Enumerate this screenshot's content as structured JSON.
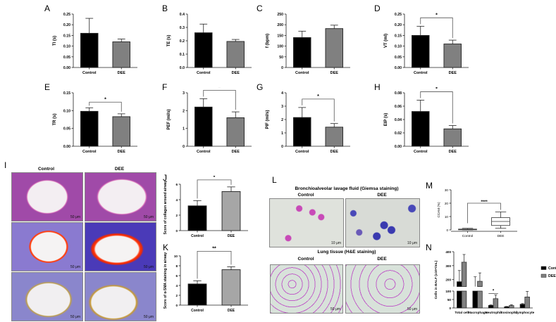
{
  "figure": {
    "panels": [
      "A",
      "B",
      "C",
      "D",
      "E",
      "F",
      "G",
      "H",
      "I",
      "J",
      "K",
      "L",
      "M",
      "N"
    ],
    "I": {
      "columns": [
        "Control",
        "DEE"
      ],
      "scale_bar": "50 μm"
    },
    "L": {
      "title_top": "Bronchioalveolar lavage fluid (Giemsa staining)",
      "title_bottom": "Lung tissue (H&E staining)",
      "columns": [
        "Control",
        "DEE"
      ],
      "scale_top": "10 μm",
      "scale_bottom": "50 μm"
    }
  },
  "colors": {
    "control": "#000000",
    "dee": "#808080",
    "dee_light": "#a6a6a6"
  },
  "chart_data": [
    {
      "panel": "A",
      "type": "bar",
      "categories": [
        "Control",
        "DEE"
      ],
      "values": [
        0.16,
        0.12
      ],
      "errors": [
        0.07,
        0.013
      ],
      "ylabel": "TI (s)",
      "ylim": [
        0,
        0.25
      ],
      "yticks": [
        "0.00",
        "0.05",
        "0.10",
        "0.15",
        "0.20",
        "0.25"
      ],
      "significance": ""
    },
    {
      "panel": "B",
      "type": "bar",
      "categories": [
        "Control",
        "DEE"
      ],
      "values": [
        0.26,
        0.195
      ],
      "errors": [
        0.065,
        0.015
      ],
      "ylabel": "TE (s)",
      "ylim": [
        0,
        0.4
      ],
      "yticks": [
        "0.0",
        "0.1",
        "0.2",
        "0.3",
        "0.4"
      ],
      "significance": ""
    },
    {
      "panel": "C",
      "type": "bar",
      "categories": [
        "Control",
        "DEE"
      ],
      "values": [
        140,
        182
      ],
      "errors": [
        30,
        16
      ],
      "ylabel": "f (bpm)",
      "ylim": [
        0,
        250
      ],
      "yticks": [
        "0",
        "50",
        "100",
        "150",
        "200",
        "250"
      ],
      "significance": ""
    },
    {
      "panel": "D",
      "type": "bar",
      "categories": [
        "Control",
        "DEE"
      ],
      "values": [
        0.15,
        0.11
      ],
      "errors": [
        0.043,
        0.018
      ],
      "ylabel": "VT (ml)",
      "ylim": [
        0,
        0.25
      ],
      "yticks": [
        "0.00",
        "0.05",
        "0.10",
        "0.15",
        "0.20",
        "0.25"
      ],
      "significance": "*"
    },
    {
      "panel": "E",
      "type": "bar",
      "categories": [
        "Control",
        "DEE"
      ],
      "values": [
        0.098,
        0.083
      ],
      "errors": [
        0.01,
        0.008
      ],
      "ylabel": "TR (s)",
      "ylim": [
        0,
        0.15
      ],
      "yticks": [
        "0.00",
        "0.05",
        "0.10",
        "0.15"
      ],
      "significance": "*"
    },
    {
      "panel": "F",
      "type": "bar",
      "categories": [
        "Control",
        "DEE"
      ],
      "values": [
        2.2,
        1.6
      ],
      "errors": [
        0.47,
        0.33
      ],
      "ylabel": "PEF (ml/s)",
      "ylim": [
        0,
        3
      ],
      "yticks": [
        "0",
        "1",
        "2",
        "3"
      ],
      "significance": "*"
    },
    {
      "panel": "G",
      "type": "bar",
      "categories": [
        "Control",
        "DEE"
      ],
      "values": [
        2.15,
        1.43
      ],
      "errors": [
        0.75,
        0.27
      ],
      "ylabel": "PIF (ml/s)",
      "ylim": [
        0,
        4
      ],
      "yticks": [
        "0",
        "1",
        "2",
        "3",
        "4"
      ],
      "significance": "*"
    },
    {
      "panel": "H",
      "type": "bar",
      "categories": [
        "Control",
        "DEE"
      ],
      "values": [
        0.052,
        0.026
      ],
      "errors": [
        0.017,
        0.005
      ],
      "ylabel": "EIP (s)",
      "ylim": [
        0,
        0.08
      ],
      "yticks": [
        "0.00",
        "0.02",
        "0.04",
        "0.06",
        "0.08"
      ],
      "significance": "*"
    },
    {
      "panel": "J",
      "type": "bar",
      "categories": [
        "Control",
        "DEE"
      ],
      "values": [
        3.2,
        5.05
      ],
      "errors": [
        0.68,
        0.6
      ],
      "ylabel": "Score of collagen around airway",
      "ylim": [
        0,
        6
      ],
      "yticks": [
        "0",
        "2",
        "4",
        "6"
      ],
      "significance": "*"
    },
    {
      "panel": "K",
      "type": "bar",
      "categories": [
        "Control",
        "DEE"
      ],
      "values": [
        4.3,
        7.2
      ],
      "errors": [
        0.65,
        0.6
      ],
      "ylabel": "Score of α-SMA staining in airway",
      "ylim": [
        0,
        10
      ],
      "yticks": [
        "0",
        "2",
        "4",
        "6",
        "8",
        "10"
      ],
      "significance": "**"
    },
    {
      "panel": "M",
      "type": "box",
      "categories": [
        "Control",
        "DEE"
      ],
      "boxes": [
        {
          "min": 0,
          "q1": 0.1,
          "median": 0.3,
          "q3": 0.6,
          "max": 1.2
        },
        {
          "min": 1.2,
          "q1": 3.3,
          "median": 6.3,
          "q3": 9.2,
          "max": 13.5
        }
      ],
      "ylabel": "CCAM (%)",
      "ylim": [
        0,
        30
      ],
      "yticks": [
        "0",
        "10",
        "20",
        "30"
      ],
      "significance": "****"
    },
    {
      "panel": "N",
      "type": "bar",
      "categories": [
        "Total cell",
        "Macrophage",
        "Neutrophil",
        "Eosinophil",
        "Lymphocyte"
      ],
      "series": [
        {
          "name": "Control",
          "values": [
            185,
            145,
            15,
            7,
            22
          ],
          "errors": [
            80,
            75,
            3,
            2,
            4
          ]
        },
        {
          "name": "DEE",
          "values": [
            325,
            188,
            55,
            14,
            65
          ],
          "errors": [
            55,
            60,
            22,
            5,
            33
          ]
        }
      ],
      "ylabel": "Cells in BALF (x10⁴/mL)",
      "ylim": [
        0,
        400
      ],
      "yaxis_break": [
        100,
        150
      ],
      "yticks": [
        "0",
        "50",
        "100",
        "200",
        "300",
        "400"
      ],
      "legend": [
        "Control",
        "DEE"
      ],
      "legend_position": "right",
      "significance": [
        {
          "category": "Neutrophil",
          "label": "*"
        }
      ]
    }
  ]
}
